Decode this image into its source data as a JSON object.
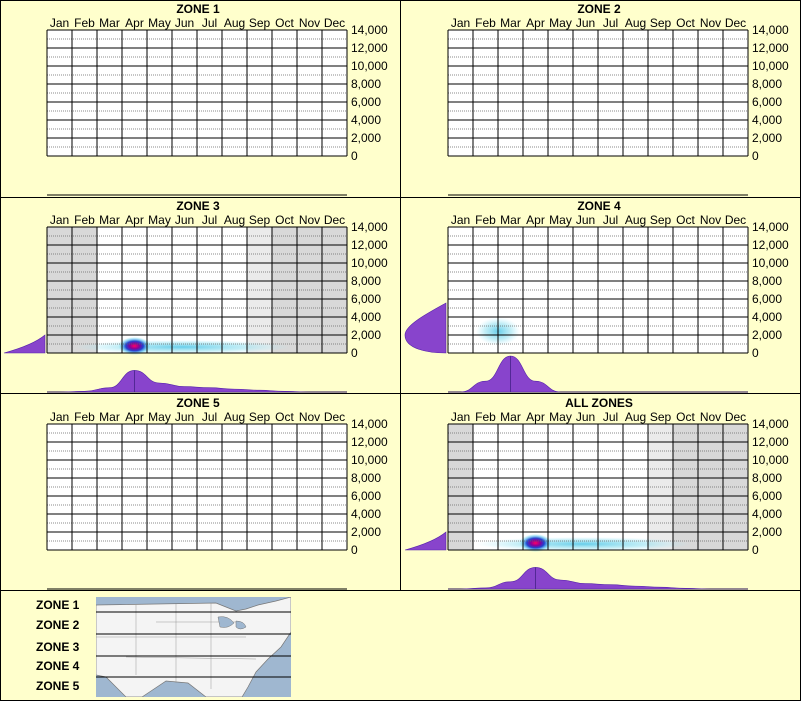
{
  "months": [
    "Jan",
    "Feb",
    "Mar",
    "Apr",
    "May",
    "Jun",
    "Jul",
    "Aug",
    "Sep",
    "Oct",
    "Nov",
    "Dec"
  ],
  "y_ticks": [
    "14,000",
    "12,000",
    "10,000",
    "8,000",
    "6,000",
    "4,000",
    "2,000",
    "0"
  ],
  "colors": {
    "background": "#ffffcc",
    "density": "#8844cc",
    "shade": "#d8d8d8",
    "hot": "#ff0066",
    "cool": "#66ddee"
  },
  "chart_data": [
    {
      "type": "heatmap",
      "title": "ZONE 1",
      "ylim": [
        0,
        14000
      ],
      "has_data": false
    },
    {
      "type": "heatmap",
      "title": "ZONE 2",
      "ylim": [
        0,
        14000
      ],
      "has_data": false
    },
    {
      "type": "heatmap",
      "title": "ZONE 3",
      "ylim": [
        0,
        14000
      ],
      "has_data": true,
      "shaded_months": [
        "Jan",
        "Feb",
        "Sep",
        "Oct",
        "Nov",
        "Dec"
      ],
      "light_shaded_months": [
        "Sep"
      ],
      "hotspot": {
        "month": 4.0,
        "elevation": 500,
        "intensity": "high"
      },
      "month_density": [
        0,
        0.02,
        0.12,
        0.6,
        0.25,
        0.15,
        0.12,
        0.08,
        0.05,
        0.02,
        0,
        0
      ],
      "elevation_density_peak": 0
    },
    {
      "type": "heatmap",
      "title": "ZONE 4",
      "ylim": [
        0,
        14000
      ],
      "has_data": true,
      "shaded_months": [],
      "hotspot": {
        "month": 2.5,
        "elevation": 2000,
        "intensity": "low"
      },
      "month_density": [
        0,
        0.3,
        1.0,
        0.3,
        0,
        0,
        0,
        0,
        0,
        0,
        0,
        0
      ],
      "elevation_density_peak": 2000
    },
    {
      "type": "heatmap",
      "title": "ZONE 5",
      "ylim": [
        0,
        14000
      ],
      "has_data": false
    },
    {
      "type": "heatmap",
      "title": "ALL ZONES",
      "ylim": [
        0,
        14000
      ],
      "has_data": true,
      "shaded_months": [
        "Jan",
        "Sep",
        "Oct",
        "Nov",
        "Dec"
      ],
      "light_shaded_months": [
        "Sep"
      ],
      "hotspot": {
        "month": 4.0,
        "elevation": 500,
        "intensity": "high"
      },
      "month_density": [
        0,
        0.03,
        0.2,
        0.6,
        0.25,
        0.15,
        0.12,
        0.08,
        0.05,
        0.02,
        0,
        0
      ],
      "elevation_density_peak": 0
    }
  ],
  "legend": {
    "zones": [
      "ZONE 1",
      "ZONE 2",
      "ZONE 3",
      "ZONE 4",
      "ZONE 5"
    ]
  }
}
